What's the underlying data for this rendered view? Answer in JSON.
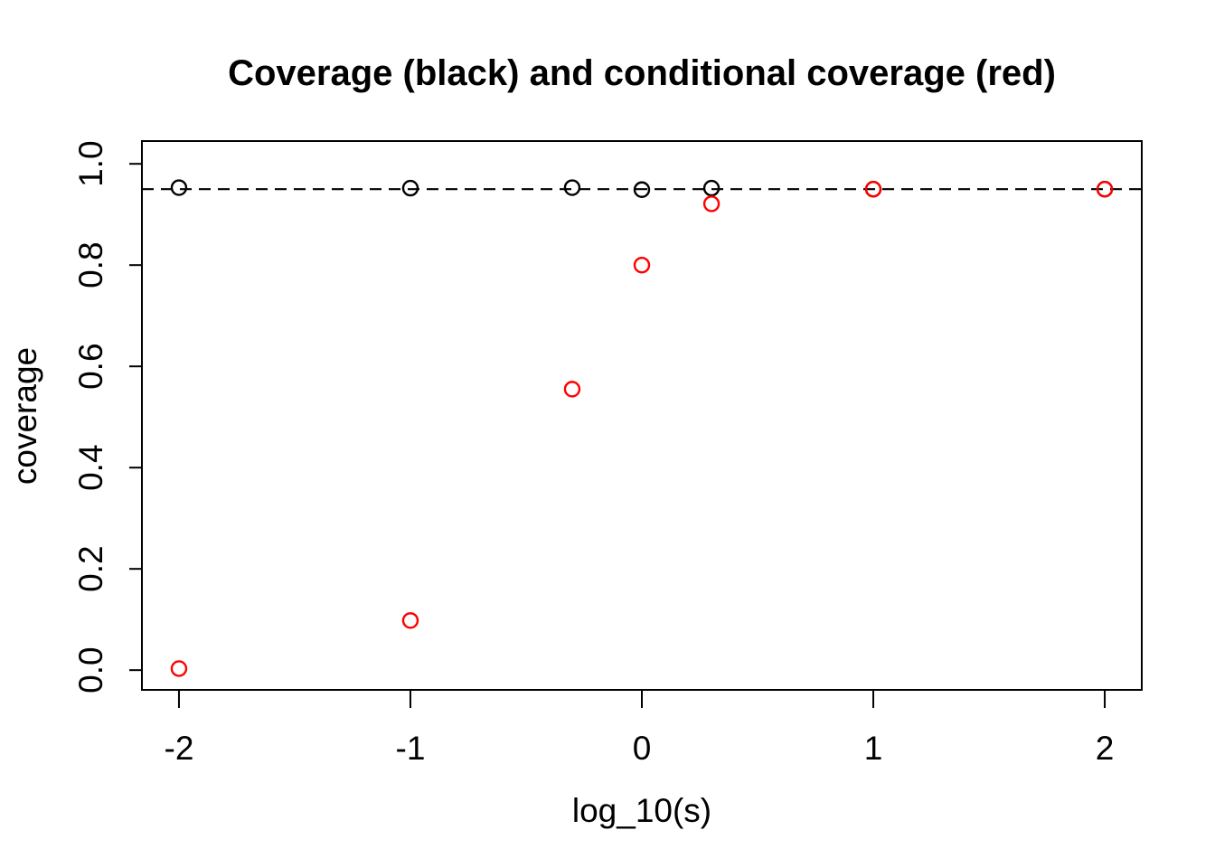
{
  "page": {
    "background_color": "#FFFFFF"
  },
  "chart_data": {
    "type": "scatter",
    "title": "Coverage (black) and conditional coverage (red)",
    "xlabel": "log_10(s)",
    "ylabel": "coverage",
    "xlim": [
      -2.16,
      2.16
    ],
    "ylim": [
      -0.039,
      1.045
    ],
    "x_ticks": [
      -2,
      -1,
      0,
      1,
      2
    ],
    "x_tick_labels": [
      "-2",
      "-1",
      "0",
      "1",
      "2"
    ],
    "y_ticks": [
      0.0,
      0.2,
      0.4,
      0.6,
      0.8,
      1.0
    ],
    "y_tick_labels": [
      "0.0",
      "0.2",
      "0.4",
      "0.6",
      "0.8",
      "1.0"
    ],
    "grid": false,
    "legend": "none (series identified in title)",
    "reference_line": {
      "y": 0.95,
      "style": "dashed",
      "color": "#000000"
    },
    "marker": {
      "shape": "open-circle",
      "radius_px": 8,
      "stroke_width_px": 2.4
    },
    "series": [
      {
        "name": "coverage",
        "color": "#000000",
        "x": [
          -2,
          -1,
          -0.301,
          0,
          0.301,
          1,
          2
        ],
        "y": [
          0.953,
          0.952,
          0.953,
          0.949,
          0.952,
          0.95,
          0.95
        ]
      },
      {
        "name": "conditional coverage",
        "color": "#FF0000",
        "x": [
          -2,
          -1,
          -0.301,
          0,
          0.301,
          1,
          2
        ],
        "y": [
          0.003,
          0.098,
          0.555,
          0.8,
          0.921,
          0.95,
          0.95
        ]
      }
    ],
    "colors": {
      "foreground": "#000000",
      "accent_red": "#FF0000"
    }
  }
}
